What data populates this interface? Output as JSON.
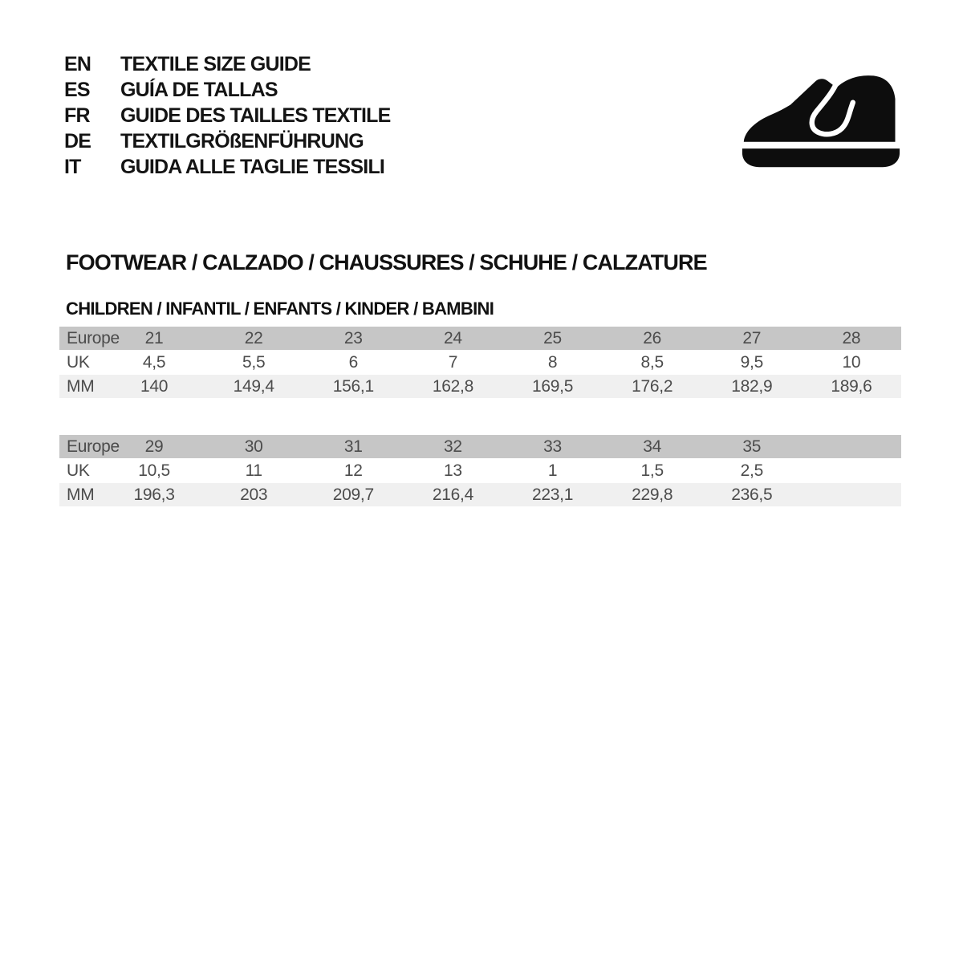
{
  "languages": [
    {
      "code": "EN",
      "label": "TEXTILE SIZE GUIDE"
    },
    {
      "code": "ES",
      "label": "GUÍA DE TALLAS"
    },
    {
      "code": "FR",
      "label": "GUIDE DES TAILLES TEXTILE"
    },
    {
      "code": "DE",
      "label": "TEXTILGRÖßENFÜHRUNG"
    },
    {
      "code": "IT",
      "label": "GUIDA ALLE TAGLIE TESSILI"
    }
  ],
  "icon": {
    "name": "children-shoe-icon",
    "color": "#0d0d0d"
  },
  "section": {
    "heading": "FOOTWEAR / CALZADO / CHAUSSURES / SCHUHE / CALZATURE",
    "subheading": "CHILDREN / INFANTIL / ENFANTS / KINDER / BAMBINI"
  },
  "colors": {
    "header_row": "#c6c6c6",
    "alt_row": "#f0f0f0",
    "table_text": "#4c4c4c",
    "heading_text": "#111111",
    "background": "#ffffff"
  },
  "chart_data": {
    "type": "table",
    "tables": [
      {
        "name": "children-sizes-21-28",
        "rows": [
          {
            "label": "Europe",
            "values": [
              "21",
              "22",
              "23",
              "24",
              "25",
              "26",
              "27",
              "28"
            ]
          },
          {
            "label": "UK",
            "values": [
              "4,5",
              "5,5",
              "6",
              "7",
              "8",
              "8,5",
              "9,5",
              "10"
            ]
          },
          {
            "label": "MM",
            "values": [
              "140",
              "149,4",
              "156,1",
              "162,8",
              "169,5",
              "176,2",
              "182,9",
              "189,6"
            ]
          }
        ]
      },
      {
        "name": "children-sizes-29-35",
        "rows": [
          {
            "label": "Europe",
            "values": [
              "29",
              "30",
              "31",
              "32",
              "33",
              "34",
              "35",
              ""
            ]
          },
          {
            "label": "UK",
            "values": [
              "10,5",
              "11",
              "12",
              "13",
              "1",
              "1,5",
              "2,5",
              ""
            ]
          },
          {
            "label": "MM",
            "values": [
              "196,3",
              "203",
              "209,7",
              "216,4",
              "223,1",
              "229,8",
              "236,5",
              ""
            ]
          }
        ]
      }
    ]
  }
}
